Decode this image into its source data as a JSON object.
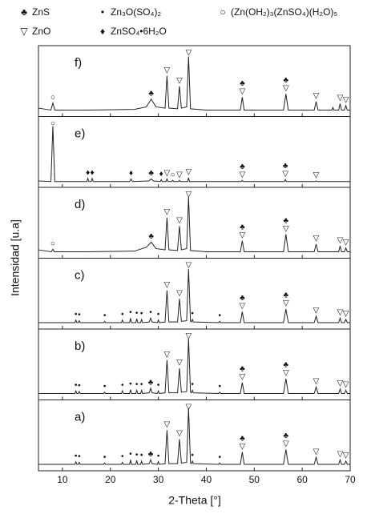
{
  "chart_data": {
    "type": "line",
    "x_label": "2-Theta [°]",
    "y_label": "Intensidad [u.a]",
    "color": "#222222",
    "xlim": [
      5,
      70
    ],
    "xticks": [
      10,
      20,
      30,
      40,
      50,
      60,
      70
    ],
    "ylim": [
      0,
      100
    ],
    "legend": [
      {
        "symbol": "♣",
        "label": "ZnS"
      },
      {
        "symbol": "•",
        "label": "Zn₃O(SO₄)₂"
      },
      {
        "symbol": "○",
        "label": "(Zn(OH₂)₃(ZnSO₄)(H₂O)₅"
      },
      {
        "symbol": "▽",
        "label": "ZnO"
      },
      {
        "symbol": "♦",
        "label": "ZnSO₄•6H₂O"
      }
    ],
    "panels": [
      {
        "label": "f)",
        "x": [
          5,
          7.6,
          8,
          8.4,
          15,
          25,
          27.5,
          28.5,
          29.5,
          31.4,
          31.8,
          32.2,
          34,
          34.4,
          34.8,
          35.9,
          36.3,
          36.7,
          40,
          47.1,
          47.5,
          47.9,
          56.1,
          56.6,
          57.1,
          62.5,
          62.9,
          63.3,
          66.2,
          66.4,
          66.6,
          67.6,
          67.9,
          68.2,
          68.8,
          69.1,
          69.4,
          70
        ],
        "values": [
          8,
          5,
          16,
          5,
          5,
          6,
          10,
          22,
          10,
          8,
          58,
          8,
          7,
          42,
          8,
          10,
          88,
          7,
          5,
          5,
          25,
          5,
          5,
          30,
          5,
          5,
          18,
          5,
          5,
          9,
          5,
          5,
          15,
          5,
          5,
          12,
          5,
          5
        ],
        "markers": [
          {
            "x": 8,
            "symbol": "○"
          },
          {
            "x": 28.5,
            "symbol": "♣"
          },
          {
            "x": 31.8,
            "symbol": "▽"
          },
          {
            "x": 34.4,
            "symbol": "▽"
          },
          {
            "x": 36.3,
            "symbol": "▽"
          },
          {
            "x": 47.5,
            "symbol": "♣"
          },
          {
            "x": 47.5,
            "symbol": "▽"
          },
          {
            "x": 56.6,
            "symbol": "♣"
          },
          {
            "x": 56.6,
            "symbol": "▽"
          },
          {
            "x": 62.9,
            "symbol": "▽"
          },
          {
            "x": 67.9,
            "symbol": "▽"
          },
          {
            "x": 69.1,
            "symbol": "▽"
          }
        ]
      },
      {
        "label": "e)",
        "x": [
          5,
          7.6,
          8,
          8.4,
          14,
          15.1,
          15.3,
          15.5,
          16,
          16.2,
          16.4,
          24,
          24.3,
          24.6,
          28,
          28.5,
          29,
          30.4,
          30.6,
          30.8,
          31.6,
          31.8,
          32,
          32.8,
          33,
          33.2,
          34.2,
          34.4,
          34.6,
          36.1,
          36.3,
          36.5,
          47.3,
          47.5,
          47.7,
          56.3,
          56.5,
          56.7,
          62.7,
          62.9,
          63.1,
          70
        ],
        "values": [
          5,
          4,
          90,
          4,
          4,
          4,
          9,
          4,
          4,
          9,
          4,
          4,
          8,
          4,
          5,
          8,
          5,
          4,
          7,
          4,
          4,
          8,
          4,
          4,
          6,
          4,
          4,
          6,
          4,
          4,
          10,
          4,
          4,
          6,
          4,
          4,
          7,
          4,
          4,
          5,
          4,
          4
        ],
        "markers": [
          {
            "x": 8,
            "symbol": "○"
          },
          {
            "x": 15.3,
            "symbol": "♦"
          },
          {
            "x": 16.2,
            "symbol": "♦"
          },
          {
            "x": 24.3,
            "symbol": "♦"
          },
          {
            "x": 28.5,
            "symbol": "♣"
          },
          {
            "x": 30.6,
            "symbol": "♦"
          },
          {
            "x": 31.8,
            "symbol": "▽"
          },
          {
            "x": 33,
            "symbol": "○"
          },
          {
            "x": 34.4,
            "symbol": "▽"
          },
          {
            "x": 36.3,
            "symbol": "▽"
          },
          {
            "x": 47.5,
            "symbol": "♣"
          },
          {
            "x": 47.5,
            "symbol": "▽"
          },
          {
            "x": 56.5,
            "symbol": "♣"
          },
          {
            "x": 56.5,
            "symbol": "▽"
          },
          {
            "x": 62.9,
            "symbol": "▽"
          }
        ]
      },
      {
        "label": "d)",
        "x": [
          5,
          7.7,
          8,
          8.3,
          15,
          25,
          27.5,
          28.5,
          29.5,
          31.4,
          31.8,
          32.2,
          34,
          34.4,
          34.8,
          35.9,
          36.3,
          36.7,
          40,
          47.1,
          47.5,
          47.9,
          56.1,
          56.6,
          57.1,
          62.5,
          62.9,
          63.3,
          67.6,
          67.9,
          68.2,
          68.8,
          69.1,
          69.4,
          70
        ],
        "values": [
          8,
          5,
          9,
          5,
          5,
          6,
          12,
          20,
          10,
          8,
          58,
          8,
          7,
          45,
          8,
          10,
          90,
          7,
          5,
          5,
          22,
          5,
          5,
          32,
          5,
          5,
          17,
          5,
          5,
          14,
          5,
          5,
          11,
          5,
          5
        ],
        "markers": [
          {
            "x": 8,
            "symbol": "○"
          },
          {
            "x": 28.5,
            "symbol": "♣"
          },
          {
            "x": 31.8,
            "symbol": "▽"
          },
          {
            "x": 34.4,
            "symbol": "▽"
          },
          {
            "x": 36.3,
            "symbol": "▽"
          },
          {
            "x": 47.5,
            "symbol": "♣"
          },
          {
            "x": 47.5,
            "symbol": "▽"
          },
          {
            "x": 56.6,
            "symbol": "♣"
          },
          {
            "x": 56.6,
            "symbol": "▽"
          },
          {
            "x": 62.9,
            "symbol": "▽"
          },
          {
            "x": 67.9,
            "symbol": "▽"
          },
          {
            "x": 69.1,
            "symbol": "▽"
          }
        ]
      },
      {
        "label": "c)",
        "x": [
          5,
          12.6,
          12.8,
          13,
          13.3,
          13.5,
          13.7,
          18.6,
          18.8,
          19,
          22.3,
          22.5,
          22.7,
          24,
          24.2,
          24.4,
          25.3,
          25.5,
          25.7,
          26.3,
          26.5,
          26.7,
          28.1,
          28.4,
          28.7,
          29.8,
          30,
          30.2,
          31.4,
          31.8,
          32.2,
          34,
          34.4,
          34.8,
          35.9,
          36.3,
          36.7,
          36.9,
          37.1,
          37.3,
          42.6,
          42.8,
          43,
          47.1,
          47.5,
          47.9,
          56.1,
          56.6,
          57.1,
          62.5,
          62.9,
          63.3,
          67.6,
          67.9,
          68.2,
          68.8,
          69.1,
          69.4,
          70
        ],
        "values": [
          5,
          5,
          9,
          5,
          5,
          8,
          5,
          5,
          7,
          5,
          5,
          9,
          5,
          5,
          12,
          5,
          5,
          11,
          5,
          5,
          10,
          5,
          6,
          12,
          6,
          5,
          9,
          5,
          6,
          55,
          6,
          6,
          42,
          7,
          8,
          88,
          7,
          6,
          10,
          6,
          5,
          7,
          5,
          5,
          22,
          5,
          5,
          26,
          5,
          5,
          15,
          5,
          5,
          12,
          5,
          5,
          10,
          5,
          5
        ],
        "markers": [
          {
            "x": 12.8,
            "symbol": "•"
          },
          {
            "x": 13.5,
            "symbol": "•"
          },
          {
            "x": 18.8,
            "symbol": "•"
          },
          {
            "x": 22.5,
            "symbol": "•"
          },
          {
            "x": 24.2,
            "symbol": "•"
          },
          {
            "x": 25.5,
            "symbol": "•"
          },
          {
            "x": 26.5,
            "symbol": "•"
          },
          {
            "x": 28.4,
            "symbol": "•"
          },
          {
            "x": 30,
            "symbol": "•"
          },
          {
            "x": 31.8,
            "symbol": "▽"
          },
          {
            "x": 34.4,
            "symbol": "▽"
          },
          {
            "x": 36.3,
            "symbol": "▽"
          },
          {
            "x": 37.1,
            "symbol": "•"
          },
          {
            "x": 42.8,
            "symbol": "•"
          },
          {
            "x": 47.5,
            "symbol": "♣"
          },
          {
            "x": 47.5,
            "symbol": "▽"
          },
          {
            "x": 56.6,
            "symbol": "♣"
          },
          {
            "x": 56.6,
            "symbol": "▽"
          },
          {
            "x": 62.9,
            "symbol": "▽"
          },
          {
            "x": 67.9,
            "symbol": "▽"
          },
          {
            "x": 69.1,
            "symbol": "▽"
          }
        ]
      },
      {
        "label": "b)",
        "x": [
          5,
          12.6,
          12.8,
          13,
          13.3,
          13.5,
          13.7,
          18.6,
          18.8,
          19,
          22.3,
          22.5,
          22.7,
          24,
          24.2,
          24.4,
          25.3,
          25.5,
          25.7,
          26.3,
          26.5,
          26.7,
          28.1,
          28.4,
          28.7,
          29.8,
          30,
          30.2,
          31.4,
          31.8,
          32.2,
          34,
          34.4,
          34.8,
          35.9,
          36.3,
          36.7,
          36.9,
          37.1,
          37.3,
          42.6,
          42.8,
          43,
          47.1,
          47.5,
          47.9,
          56.1,
          56.6,
          57.1,
          62.5,
          62.9,
          63.3,
          67.6,
          67.9,
          68.2,
          68.8,
          69.1,
          69.4,
          70
        ],
        "values": [
          5,
          5,
          9,
          5,
          5,
          8,
          5,
          5,
          7,
          5,
          5,
          9,
          5,
          5,
          11,
          5,
          5,
          10,
          5,
          5,
          10,
          5,
          6,
          13,
          6,
          5,
          9,
          5,
          6,
          57,
          6,
          6,
          44,
          7,
          8,
          90,
          7,
          6,
          10,
          6,
          5,
          7,
          5,
          5,
          22,
          5,
          5,
          28,
          5,
          5,
          15,
          5,
          5,
          12,
          5,
          5,
          10,
          5,
          5
        ],
        "markers": [
          {
            "x": 12.8,
            "symbol": "•"
          },
          {
            "x": 13.5,
            "symbol": "•"
          },
          {
            "x": 18.8,
            "symbol": "•"
          },
          {
            "x": 22.5,
            "symbol": "•"
          },
          {
            "x": 24.2,
            "symbol": "•"
          },
          {
            "x": 25.5,
            "symbol": "•"
          },
          {
            "x": 26.5,
            "symbol": "•"
          },
          {
            "x": 28.4,
            "symbol": "♣"
          },
          {
            "x": 30,
            "symbol": "•"
          },
          {
            "x": 31.8,
            "symbol": "▽"
          },
          {
            "x": 34.4,
            "symbol": "▽"
          },
          {
            "x": 36.3,
            "symbol": "▽"
          },
          {
            "x": 37.1,
            "symbol": "•"
          },
          {
            "x": 42.8,
            "symbol": "•"
          },
          {
            "x": 47.5,
            "symbol": "♣"
          },
          {
            "x": 47.5,
            "symbol": "▽"
          },
          {
            "x": 56.6,
            "symbol": "♣"
          },
          {
            "x": 56.6,
            "symbol": "▽"
          },
          {
            "x": 62.9,
            "symbol": "▽"
          },
          {
            "x": 67.9,
            "symbol": "▽"
          },
          {
            "x": 69.1,
            "symbol": "▽"
          }
        ]
      },
      {
        "label": "a)",
        "x": [
          5,
          12.6,
          12.8,
          13,
          13.3,
          13.5,
          13.7,
          18.6,
          18.8,
          19,
          22.3,
          22.5,
          22.7,
          24,
          24.2,
          24.4,
          25.3,
          25.5,
          25.7,
          26.3,
          26.5,
          26.7,
          28.1,
          28.4,
          28.7,
          29.8,
          30,
          30.2,
          31.4,
          31.8,
          32.2,
          34,
          34.4,
          34.8,
          35.9,
          36.3,
          36.7,
          36.9,
          37.1,
          37.3,
          42.6,
          42.8,
          43,
          47.1,
          47.5,
          47.9,
          56.1,
          56.6,
          57.1,
          62.5,
          62.9,
          63.3,
          67.6,
          67.9,
          68.2,
          68.8,
          69.1,
          69.4,
          70
        ],
        "values": [
          5,
          5,
          9,
          5,
          5,
          8,
          5,
          5,
          7,
          5,
          5,
          8,
          5,
          5,
          12,
          5,
          5,
          11,
          5,
          5,
          10,
          5,
          6,
          12,
          6,
          5,
          9,
          5,
          6,
          58,
          6,
          6,
          44,
          7,
          8,
          92,
          7,
          6,
          10,
          6,
          5,
          7,
          5,
          5,
          24,
          5,
          5,
          28,
          5,
          5,
          16,
          5,
          5,
          12,
          5,
          5,
          10,
          5,
          5
        ],
        "markers": [
          {
            "x": 12.8,
            "symbol": "•"
          },
          {
            "x": 13.5,
            "symbol": "•"
          },
          {
            "x": 18.8,
            "symbol": "•"
          },
          {
            "x": 22.5,
            "symbol": "•"
          },
          {
            "x": 24.2,
            "symbol": "•"
          },
          {
            "x": 25.5,
            "symbol": "•"
          },
          {
            "x": 26.5,
            "symbol": "•"
          },
          {
            "x": 28.4,
            "symbol": "♣"
          },
          {
            "x": 30,
            "symbol": "•"
          },
          {
            "x": 31.8,
            "symbol": "▽"
          },
          {
            "x": 34.4,
            "symbol": "▽"
          },
          {
            "x": 36.3,
            "symbol": "▽"
          },
          {
            "x": 37.1,
            "symbol": "•"
          },
          {
            "x": 42.8,
            "symbol": "•"
          },
          {
            "x": 47.5,
            "symbol": "♣"
          },
          {
            "x": 47.5,
            "symbol": "▽"
          },
          {
            "x": 56.6,
            "symbol": "♣"
          },
          {
            "x": 56.6,
            "symbol": "▽"
          },
          {
            "x": 62.9,
            "symbol": "▽"
          },
          {
            "x": 67.9,
            "symbol": "▽"
          },
          {
            "x": 69.1,
            "symbol": "▽"
          }
        ]
      }
    ]
  }
}
